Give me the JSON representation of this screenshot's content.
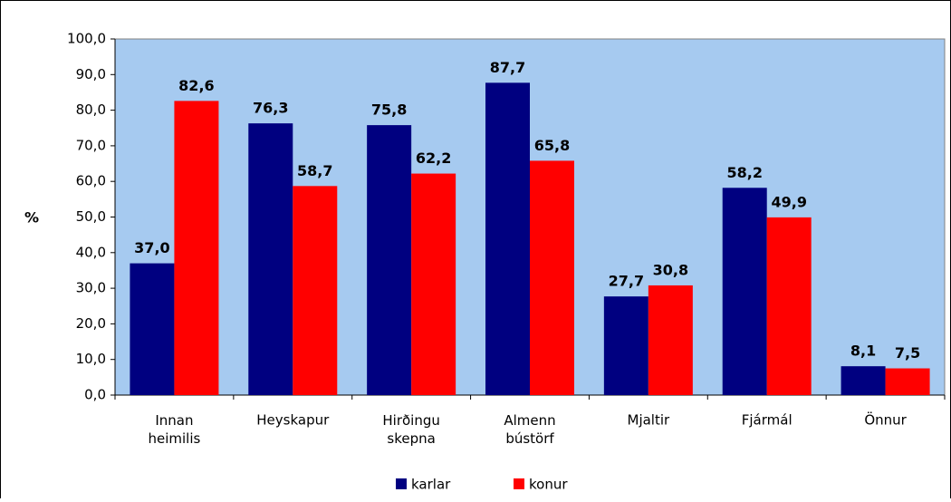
{
  "chart_data": {
    "type": "bar",
    "categories": [
      "Innan heimilis",
      "Heyskapur",
      "Hirðingu skepna",
      "Almenn bústörf",
      "Mjaltir",
      "Fjármál",
      "Önnur"
    ],
    "y_label": "%",
    "series": [
      {
        "name": "karlar",
        "color": "#000080",
        "values": [
          37.0,
          76.3,
          75.8,
          87.7,
          27.7,
          58.2,
          8.1
        ],
        "value_labels": [
          "37,0",
          "76,3",
          "75,8",
          "87,7",
          "27,7",
          "58,2",
          "8,1"
        ]
      },
      {
        "name": "konur",
        "color": "#ff0000",
        "values": [
          82.6,
          58.7,
          62.2,
          65.8,
          30.8,
          49.9,
          7.5
        ],
        "value_labels": [
          "82,6",
          "58,7",
          "62,2",
          "65,8",
          "30,8",
          "49,9",
          "7,5"
        ]
      }
    ],
    "ylim": [
      0,
      100
    ],
    "yticks": [
      {
        "value": 0,
        "label": "0,0"
      },
      {
        "value": 10,
        "label": "10,0"
      },
      {
        "value": 20,
        "label": "20,0"
      },
      {
        "value": 30,
        "label": "30,0"
      },
      {
        "value": 40,
        "label": "40,0"
      },
      {
        "value": 50,
        "label": "50,0"
      },
      {
        "value": 60,
        "label": "60,0"
      },
      {
        "value": 70,
        "label": "70,0"
      },
      {
        "value": 80,
        "label": "80,0"
      },
      {
        "value": 90,
        "label": "90,0"
      },
      {
        "value": 100,
        "label": "100,0"
      }
    ],
    "legend": "bottom"
  }
}
